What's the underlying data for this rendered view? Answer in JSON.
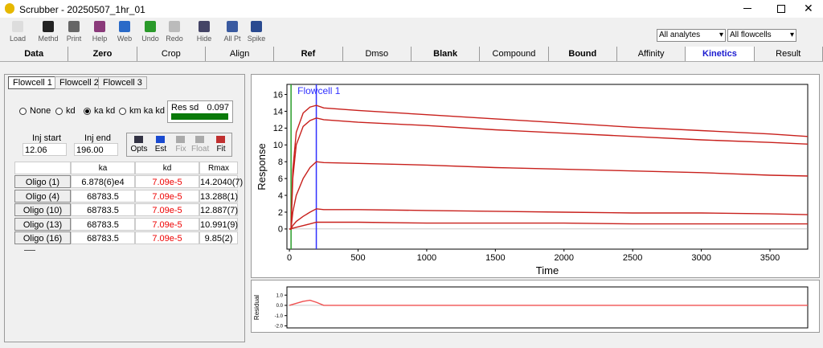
{
  "window": {
    "title": "Scrubber - 20250507_1hr_01"
  },
  "toolbar": {
    "buttons": [
      "Load",
      "Methd",
      "Print",
      "Help",
      "Web",
      "Undo",
      "Redo",
      "Hide",
      "All Pt",
      "Spike"
    ],
    "analytes": "All analytes",
    "flowcells": "All flowcells"
  },
  "tabs": [
    "Data",
    "Zero",
    "Crop",
    "Align",
    "Ref",
    "Dmso",
    "Blank",
    "Compound",
    "Bound",
    "Affinity",
    "Kinetics",
    "Result"
  ],
  "flowcell_tabs": [
    "Flowcell 1",
    "Flowcell 2",
    "Flowcell 3"
  ],
  "model_options": [
    "None",
    "kd",
    "ka kd",
    "km ka kd"
  ],
  "res_sd": {
    "label": "Res sd",
    "value": "0.097"
  },
  "inj_start": {
    "label": "Inj start",
    "value": "12.06"
  },
  "inj_end": {
    "label": "Inj end",
    "value": "196.00"
  },
  "fit_buttons": [
    "Opts",
    "Est",
    "Fix",
    "Float",
    "Fit"
  ],
  "table": {
    "header": [
      "ka",
      "kd",
      "Rmax"
    ],
    "rows": [
      [
        "Oligo (1)",
        "6.878(6)e4",
        "7.09e-5",
        "14.2040(7)"
      ],
      [
        "Oligo (4)",
        "68783.5",
        "7.09e-5",
        "13.288(1)"
      ],
      [
        "Oligo (10)",
        "68783.5",
        "7.09e-5",
        "12.887(7)"
      ],
      [
        "Oligo (13)",
        "68783.5",
        "7.09e-5",
        "10.991(9)"
      ],
      [
        "Oligo (16)",
        "68783.5",
        "7.09e-5",
        "9.85(2)"
      ]
    ]
  },
  "chart_data": [
    {
      "type": "line",
      "title": "Flowcell 1",
      "x_label": "Time",
      "y_label": "Response",
      "x": [
        0,
        12,
        25,
        50,
        100,
        150,
        196,
        250,
        500,
        1000,
        1500,
        2000,
        2500,
        3000,
        3500,
        3775
      ],
      "series": [
        {
          "name": "Oligo (1)",
          "color": "#c8201c",
          "values": [
            0,
            0,
            7,
            11.5,
            13.8,
            14.5,
            14.7,
            14.4,
            14.1,
            13.6,
            13.1,
            12.6,
            12.1,
            11.7,
            11.3,
            11.0
          ]
        },
        {
          "name": "Oligo (4)",
          "color": "#c8201c",
          "values": [
            0,
            0,
            6,
            10,
            12.2,
            12.9,
            13.2,
            13.0,
            12.7,
            12.3,
            11.8,
            11.4,
            11.0,
            10.6,
            10.3,
            10.1
          ]
        },
        {
          "name": "Oligo (10)",
          "color": "#c8201c",
          "values": [
            0,
            0,
            2,
            4,
            6,
            7.3,
            8.0,
            7.9,
            7.8,
            7.6,
            7.3,
            7.1,
            6.9,
            6.7,
            6.4,
            6.3
          ]
        },
        {
          "name": "Oligo (13)",
          "color": "#c8201c",
          "values": [
            0,
            0,
            0.4,
            0.9,
            1.5,
            2.0,
            2.4,
            2.3,
            2.3,
            2.2,
            2.1,
            2.0,
            1.9,
            1.9,
            1.8,
            1.7
          ]
        },
        {
          "name": "Oligo (16)",
          "color": "#c8201c",
          "values": [
            0,
            0,
            0.1,
            0.2,
            0.4,
            0.6,
            0.8,
            0.8,
            0.8,
            0.7,
            0.7,
            0.7,
            0.6,
            0.6,
            0.6,
            0.6
          ]
        }
      ],
      "vlines": [
        {
          "value": 12.06,
          "color": "#2a9d2a"
        },
        {
          "value": 196,
          "color": "#3030ff"
        }
      ],
      "xlim": [
        -18,
        3775
      ],
      "ylim": [
        -2.4,
        17.2
      ],
      "xticks": [
        0,
        500,
        1000,
        1500,
        2000,
        2500,
        3000,
        3500
      ],
      "yticks": [
        0,
        2,
        4,
        6,
        8,
        10,
        12,
        14,
        16
      ]
    },
    {
      "type": "line",
      "y_label": "Residual",
      "x": [
        0,
        50,
        100,
        150,
        196,
        250,
        400,
        1000,
        2000,
        3000,
        3775
      ],
      "series": [
        {
          "name": "Residual",
          "color": "#f05050",
          "values": [
            0,
            0.2,
            0.4,
            0.5,
            0.3,
            0,
            0,
            0,
            0,
            0,
            0
          ]
        }
      ],
      "xlim": [
        -18,
        3775
      ],
      "ylim": [
        -2.2,
        1.8
      ],
      "yticks": [
        {
          "value": 1,
          "label": "1.0"
        },
        {
          "value": 0,
          "label": "0.0"
        },
        {
          "value": -1,
          "label": "-1.0"
        },
        {
          "value": -2,
          "label": "-2.0"
        }
      ]
    }
  ]
}
